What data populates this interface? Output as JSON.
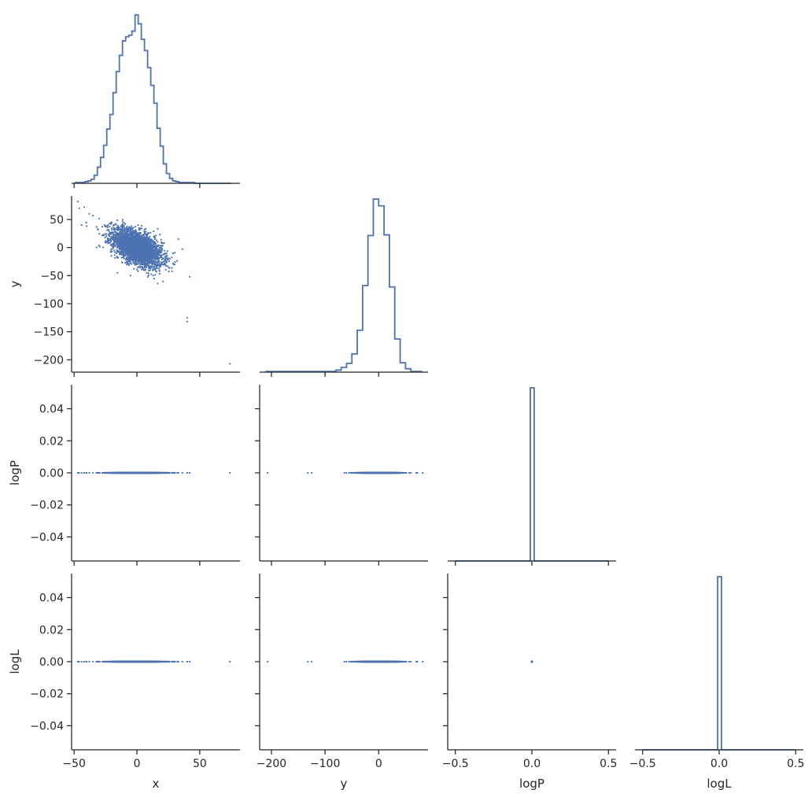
{
  "chart_data": {
    "type": "scatter",
    "layout": "corner pair plot",
    "variables": [
      "x",
      "y",
      "logP",
      "logL"
    ],
    "series_color": "#4c72b0",
    "axes": {
      "x": {
        "label": "x",
        "range": [
          -52,
          82
        ],
        "ticks": [
          -50,
          0,
          50
        ],
        "tick_labels": [
          "−50",
          "0",
          "50"
        ]
      },
      "y": {
        "label": "y",
        "range": [
          -222,
          92
        ],
        "ticks": [
          -200,
          -150,
          -100,
          -50,
          0,
          50
        ],
        "tick_labels": [
          "−200",
          "−150",
          "−100",
          "−50",
          "0",
          "50"
        ],
        "bottom_ticks": [
          -200,
          -100,
          0
        ],
        "bottom_tick_labels": [
          "−200",
          "−100",
          "0"
        ]
      },
      "logP": {
        "label": "logP",
        "range": [
          -0.055,
          0.055
        ],
        "ticks": [
          -0.04,
          -0.02,
          0.0,
          0.02,
          0.04
        ],
        "tick_labels": [
          "−0.04",
          "−0.02",
          "0.00",
          "0.02",
          "0.04"
        ],
        "bottom_range": [
          -0.55,
          0.55
        ],
        "bottom_ticks": [
          -0.5,
          0.0,
          0.5
        ],
        "bottom_tick_labels": [
          "−0.5",
          "0.0",
          "0.5"
        ]
      },
      "logL": {
        "label": "logL",
        "range": [
          -0.055,
          0.055
        ],
        "ticks": [
          -0.04,
          -0.02,
          0.0,
          0.02,
          0.04
        ],
        "tick_labels": [
          "−0.04",
          "−0.02",
          "0.00",
          "0.02",
          "0.04"
        ],
        "bottom_range": [
          -0.55,
          0.55
        ],
        "bottom_ticks": [
          -0.5,
          0.0,
          0.5
        ],
        "bottom_tick_labels": [
          "−0.5",
          "0.0",
          "0.5"
        ]
      }
    },
    "histograms": {
      "x": {
        "edges": [
          -49,
          -46.5,
          -44,
          -41.5,
          -39,
          -36.5,
          -34,
          -31.5,
          -29,
          -26.5,
          -24,
          -21.5,
          -19,
          -16.5,
          -14,
          -11.5,
          -9,
          -6.5,
          -4,
          -1.5,
          1,
          3.5,
          6,
          8.5,
          11,
          13.5,
          16,
          18.5,
          21,
          23.5,
          26,
          28.5,
          31,
          33.5,
          36,
          38.5,
          41,
          43.5,
          46,
          75
        ],
        "counts": [
          1,
          1,
          1,
          2,
          3,
          5,
          10,
          20,
          32,
          47,
          67,
          85,
          112,
          138,
          158,
          176,
          181,
          183,
          188,
          208,
          197,
          178,
          164,
          143,
          121,
          99,
          68,
          46,
          24,
          12,
          6,
          3,
          2,
          1,
          1,
          1,
          1,
          1,
          0
        ]
      },
      "y": {
        "edges": [
          -210,
          -80,
          -70,
          -60,
          -50,
          -40,
          -30,
          -20,
          -10,
          0,
          10,
          20,
          30,
          40,
          50,
          60,
          70,
          80
        ],
        "counts": [
          1,
          3,
          7,
          13,
          27,
          62,
          128,
          202,
          256,
          246,
          203,
          126,
          49,
          14,
          5,
          1,
          1
        ]
      },
      "logP": {
        "edges": [
          -0.5,
          -0.01,
          0.015,
          0.5
        ],
        "counts": [
          0,
          1,
          0
        ]
      },
      "logL": {
        "edges": [
          -0.5,
          -0.01,
          0.015,
          0.5
        ],
        "counts": [
          0,
          1,
          0
        ]
      }
    },
    "scatter_points": 3000,
    "outliers": {
      "x": [
        -47,
        -46,
        -44,
        -42,
        -40,
        -38,
        -35,
        40,
        40,
        42,
        33,
        74
      ],
      "y": [
        82,
        70,
        40,
        72,
        38,
        60,
        57,
        -125,
        -132,
        -52,
        15,
        -207
      ]
    },
    "correlation_xy": -0.55,
    "logP_value": 0.0,
    "logL_value": 0.0
  }
}
